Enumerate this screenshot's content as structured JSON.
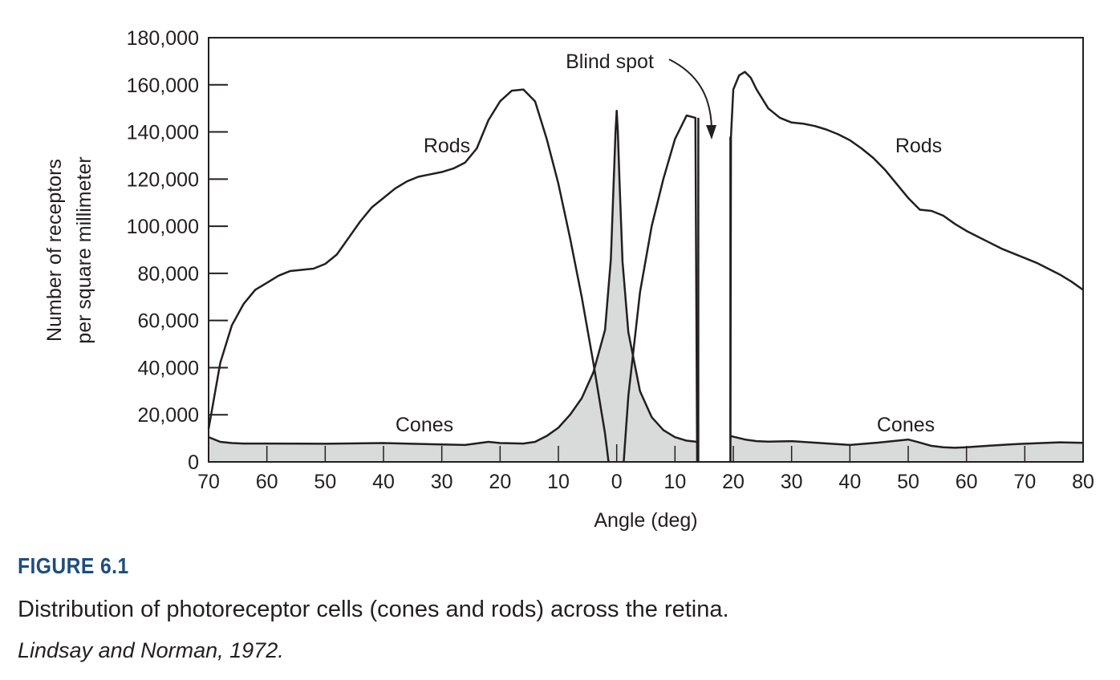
{
  "chart_data": {
    "type": "area",
    "xlabel": "Angle (deg)",
    "ylabel": [
      "Number of receptors",
      "per square millimeter"
    ],
    "ylim": [
      0,
      180000
    ],
    "xlim": [
      -70,
      80
    ],
    "yticks": [
      0,
      20000,
      40000,
      60000,
      80000,
      100000,
      120000,
      140000,
      160000,
      180000
    ],
    "ytick_labels": [
      "0",
      "20,000",
      "40,000",
      "60,000",
      "80,000",
      "100,000",
      "120,000",
      "140,000",
      "160,000",
      "180,000"
    ],
    "xticks": [
      -70,
      -60,
      -50,
      -40,
      -30,
      -20,
      -10,
      0,
      10,
      20,
      30,
      40,
      50,
      60,
      70,
      80
    ],
    "xtick_labels": [
      "70",
      "60",
      "50",
      "40",
      "30",
      "20",
      "10",
      "0",
      "10",
      "20",
      "30",
      "40",
      "50",
      "60",
      "70",
      "80"
    ],
    "grid": false,
    "blind_spot": {
      "label": "Blind spot",
      "range": [
        14,
        19.5
      ]
    },
    "series": [
      {
        "name": "Rods",
        "labels": [
          "Rods",
          "Rods"
        ],
        "segments": [
          {
            "x": [
              -70,
              -68,
              -66,
              -64,
              -62,
              -60,
              -58,
              -56,
              -54,
              -52,
              -50,
              -48,
              -46,
              -44,
              -42,
              -40,
              -38,
              -36,
              -34,
              -32,
              -30,
              -28,
              -26,
              -24,
              -22,
              -20,
              -18,
              -16,
              -14,
              -12,
              -10,
              -8,
              -6,
              -4,
              -2,
              -1.4
            ],
            "y": [
              14000,
              42000,
              58000,
              67000,
              73000,
              76000,
              79000,
              81000,
              81500,
              82000,
              84000,
              88000,
              95000,
              102000,
              108000,
              112000,
              116000,
              119000,
              121000,
              122000,
              123000,
              124500,
              127000,
              133000,
              145000,
              153000,
              157500,
              158000,
              153000,
              137000,
              118000,
              95000,
              70000,
              42000,
              12000,
              0
            ]
          },
          {
            "x": [
              1.2,
              2,
              4,
              6,
              8,
              10,
              12,
              13.5,
              13.8
            ],
            "y": [
              0,
              28000,
              72000,
              100000,
              120000,
              137000,
              147000,
              146000,
              0
            ]
          },
          {
            "x": [
              19.5,
              19.6,
              20,
              21,
              22,
              23,
              24,
              26,
              28,
              30,
              32,
              34,
              36,
              38,
              40,
              42,
              44,
              46,
              48,
              50,
              52,
              54,
              56,
              58,
              60,
              62,
              64,
              66,
              68,
              70,
              72,
              74,
              76,
              78,
              80
            ],
            "y": [
              0,
              138000,
              158000,
              164000,
              165500,
              163000,
              158000,
              150000,
              146000,
              144000,
              143500,
              142500,
              141000,
              139000,
              136500,
              133000,
              129000,
              124000,
              118000,
              112000,
              107000,
              106500,
              104500,
              101000,
              98000,
              95500,
              93000,
              90500,
              88500,
              86500,
              84500,
              82000,
              79500,
              76500,
              73000
            ]
          }
        ]
      },
      {
        "name": "Cones",
        "labels": [
          "Cones",
          "Cones"
        ],
        "segments": [
          {
            "x": [
              -70,
              -68,
              -66,
              -64,
              -60,
              -50,
              -40,
              -30,
              -26,
              -22,
              -20,
              -16,
              -14,
              -12,
              -10,
              -8,
              -6,
              -4,
              -2,
              -1,
              -0.5,
              -0.2,
              0,
              0.2,
              0.5,
              1,
              2,
              4,
              6,
              8,
              10,
              12,
              13.8
            ],
            "y": [
              10500,
              8500,
              8000,
              7800,
              7800,
              7700,
              8000,
              7400,
              7200,
              8500,
              8000,
              7800,
              8500,
              11000,
              14500,
              20000,
              27000,
              38000,
              56000,
              86000,
              120000,
              140000,
              149000,
              140000,
              118000,
              85000,
              55000,
              30000,
              19000,
              13500,
              10500,
              9000,
              8500
            ]
          },
          {
            "x": [
              19.5,
              22,
              24,
              26,
              30,
              35,
              40,
              45,
              50,
              52,
              54,
              56,
              58,
              60,
              64,
              68,
              72,
              76,
              80
            ],
            "y": [
              11000,
              9500,
              8800,
              8600,
              8800,
              8000,
              7200,
              8200,
              9500,
              8200,
              6800,
              6200,
              6000,
              6200,
              6900,
              7500,
              7900,
              8300,
              8100
            ]
          }
        ]
      }
    ]
  },
  "caption": {
    "figure_number": "FIGURE 6.1",
    "text": "Distribution of photoreceptor cells (cones and rods) across the retina.",
    "source": "Lindsay and Norman, 1972."
  }
}
